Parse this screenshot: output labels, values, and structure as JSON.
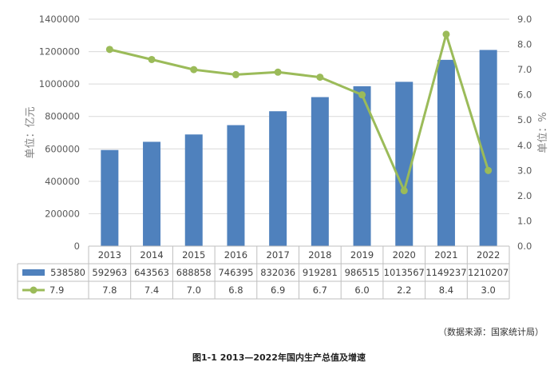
{
  "chart_data": {
    "type": "bar+line",
    "title": "",
    "categories": [
      "2013",
      "2014",
      "2015",
      "2016",
      "2017",
      "2018",
      "2019",
      "2020",
      "2021",
      "2022"
    ],
    "series": [
      {
        "name": "",
        "type": "bar",
        "axis": "left",
        "color": "#4F81BD",
        "legend_value": "538580",
        "values": [
          592963,
          643563,
          688858,
          746395,
          832036,
          919281,
          986515,
          1013567,
          1149237,
          1210207
        ]
      },
      {
        "name": "",
        "type": "line",
        "axis": "right",
        "color": "#9BBB59",
        "legend_value": "7.9",
        "values": [
          7.8,
          7.4,
          7.0,
          6.8,
          6.9,
          6.7,
          6.0,
          2.2,
          8.4,
          3.0
        ]
      }
    ],
    "y_left": {
      "label": "单位：亿元",
      "min": 0,
      "max": 1400000,
      "step": 200000,
      "ticks": [
        "0",
        "200000",
        "400000",
        "600000",
        "800000",
        "1000000",
        "1200000",
        "1400000"
      ]
    },
    "y_right": {
      "label": "单位：%",
      "min": 0,
      "max": 9,
      "step": 1,
      "ticks": [
        "0.0",
        "1.0",
        "2.0",
        "3.0",
        "4.0",
        "5.0",
        "6.0",
        "7.0",
        "8.0",
        "9.0"
      ]
    },
    "grid": true,
    "data_table": true
  },
  "source_note": "（数据来源：国家统计局）",
  "figure_caption": "图1-1 2013—2022年国内生产总值及增速"
}
